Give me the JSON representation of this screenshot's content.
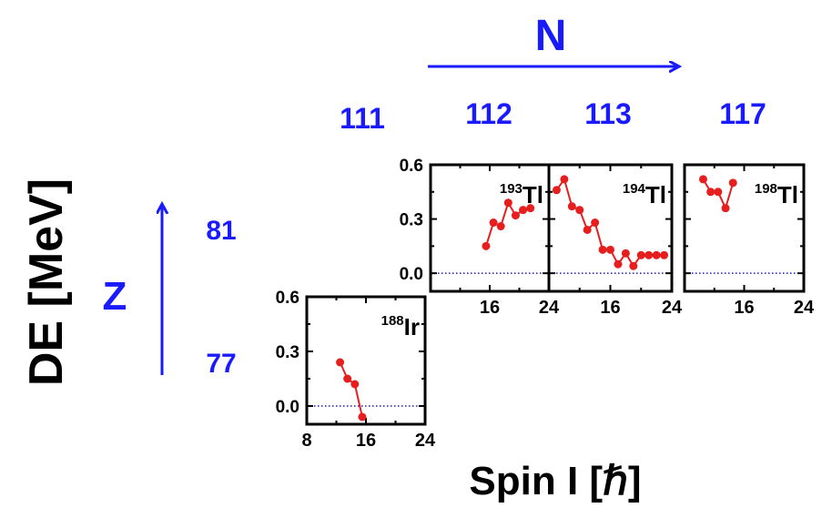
{
  "labels": {
    "n_axis": "N",
    "z_axis": "Z",
    "y_title": "DE [MeV]",
    "x_title": "Spin I [ℏ]",
    "neutron_numbers": [
      "111",
      "112",
      "113",
      "117"
    ],
    "proton_numbers": [
      "81",
      "77"
    ]
  },
  "colors": {
    "annotation": "#1a1aff",
    "series": "#e61e1e",
    "zero_line": "#1a1acc",
    "frame": "#000000"
  },
  "chart_data": [
    {
      "type": "line",
      "panel": "193Tl",
      "nucleus_mass": "193",
      "nucleus_symbol": "Tl",
      "xlim": [
        8,
        24
      ],
      "ylim": [
        -0.1,
        0.6
      ],
      "x_ticks": [
        "16",
        "24"
      ],
      "y_ticks": [
        "0.6",
        "0.3",
        "0.0"
      ],
      "x": [
        15.5,
        16.5,
        17.5,
        18.5,
        19.5,
        20.5,
        21.5
      ],
      "y": [
        0.15,
        0.28,
        0.26,
        0.39,
        0.32,
        0.35,
        0.36
      ]
    },
    {
      "type": "line",
      "panel": "194Tl",
      "nucleus_mass": "194",
      "nucleus_symbol": "Tl",
      "xlim": [
        8,
        24
      ],
      "ylim": [
        -0.1,
        0.6
      ],
      "x_ticks": [
        "16",
        "24"
      ],
      "x": [
        9,
        10,
        11,
        12,
        13,
        14,
        15,
        16,
        17,
        18,
        19,
        20,
        21,
        22,
        23
      ],
      "y": [
        0.46,
        0.52,
        0.37,
        0.35,
        0.24,
        0.28,
        0.13,
        0.13,
        0.05,
        0.11,
        0.04,
        0.1,
        0.1,
        0.1,
        0.1
      ]
    },
    {
      "type": "line",
      "panel": "198Tl",
      "nucleus_mass": "198",
      "nucleus_symbol": "Tl",
      "xlim": [
        8,
        24
      ],
      "ylim": [
        -0.1,
        0.6
      ],
      "x_ticks": [
        "16",
        "24"
      ],
      "x": [
        10.5,
        11.5,
        12.5,
        13.5,
        14.5
      ],
      "y": [
        0.52,
        0.45,
        0.45,
        0.36,
        0.5
      ]
    },
    {
      "type": "line",
      "panel": "188Ir",
      "nucleus_mass": "188",
      "nucleus_symbol": "Ir",
      "xlim": [
        8,
        24
      ],
      "ylim": [
        -0.1,
        0.6
      ],
      "x_ticks": [
        "8",
        "16",
        "24"
      ],
      "y_ticks": [
        "0.6",
        "0.3",
        "0.0"
      ],
      "x": [
        12.5,
        13.5,
        14.5,
        15.5
      ],
      "y": [
        0.24,
        0.15,
        0.12,
        -0.06
      ]
    }
  ]
}
